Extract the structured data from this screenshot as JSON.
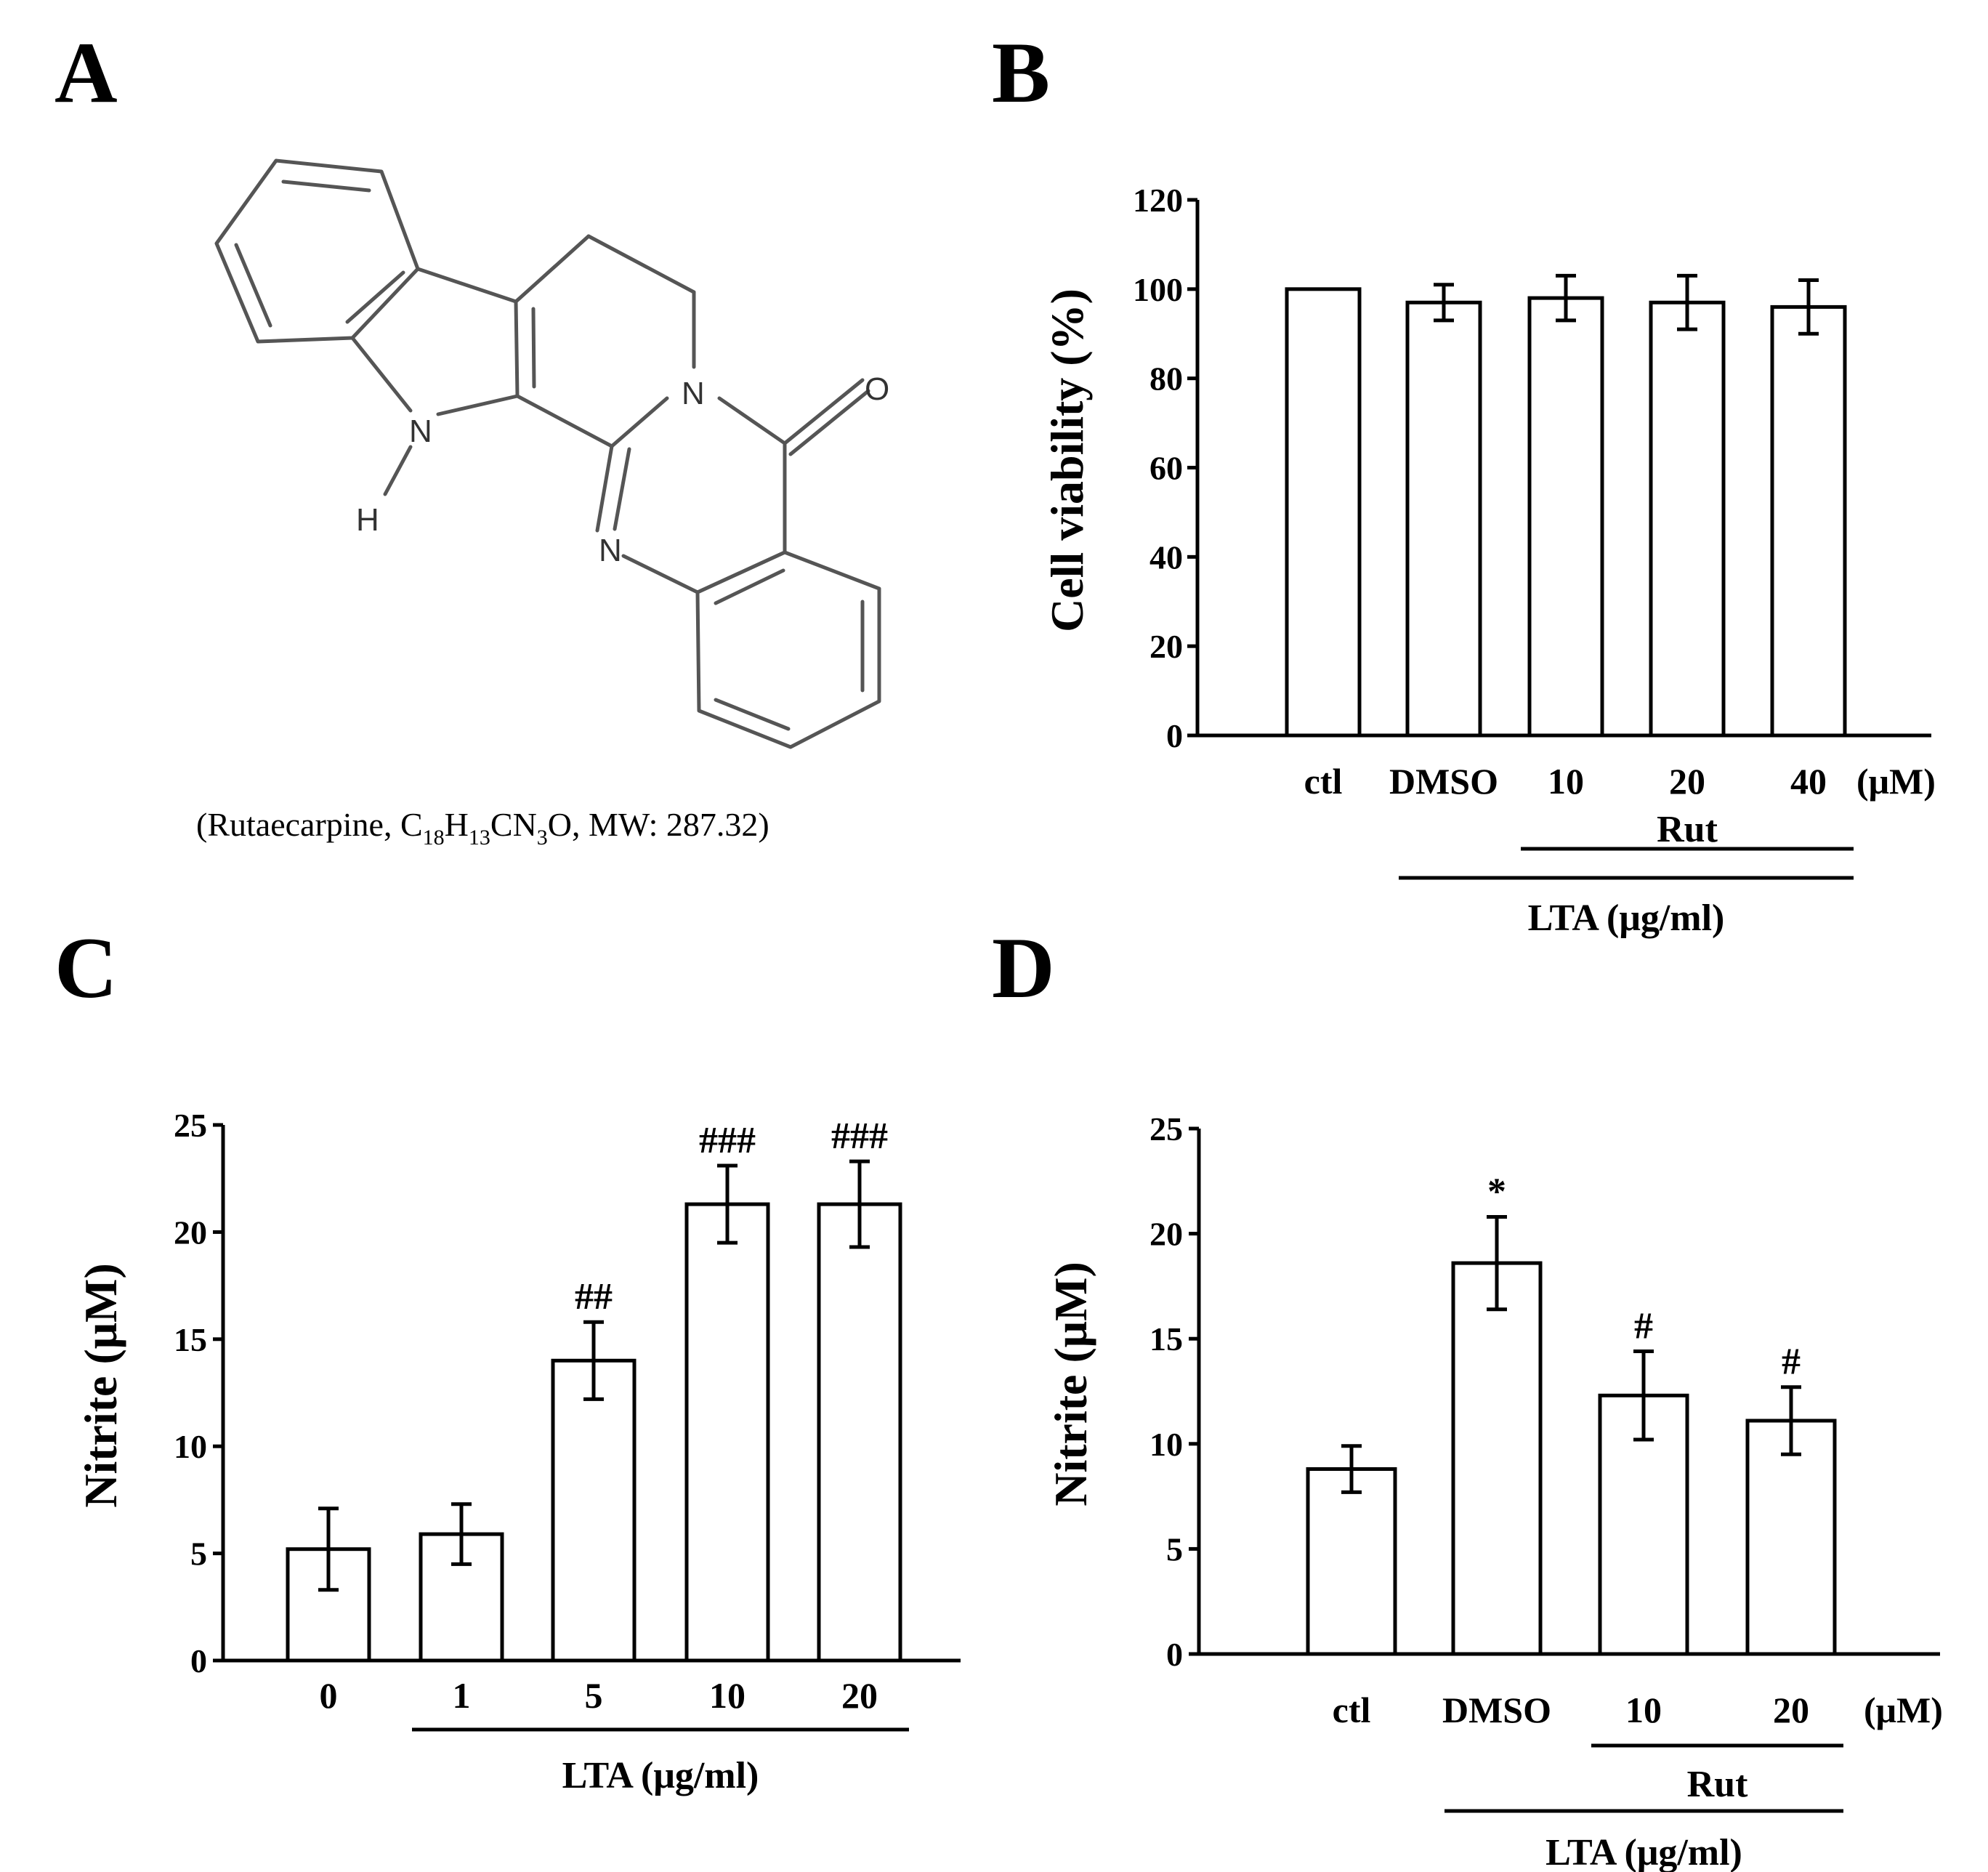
{
  "panels": {
    "a": {
      "letter": "A",
      "atoms": {
        "o": "O",
        "n_amide": "N",
        "n_imine": "N",
        "n_indole": "N",
        "h": "H"
      },
      "caption": {
        "prefix": "(Rutaecarpine, C",
        "sub1": "18",
        "h": "H",
        "sub2": "13",
        "cn": "CN",
        "sub3": "3",
        "suffix": "O, MW: 287.32)"
      }
    },
    "b": {
      "letter": "B"
    },
    "c": {
      "letter": "C"
    },
    "d": {
      "letter": "D"
    }
  },
  "colors": {
    "bar_fill": "#ffffff",
    "ink": "#000000",
    "structure": "#555555"
  },
  "chart_data": [
    {
      "panel": "B",
      "type": "bar",
      "ylabel": "Cell viability (%)",
      "ylim": [
        0,
        120
      ],
      "yticks": [
        0,
        20,
        40,
        60,
        80,
        100,
        120
      ],
      "categories": [
        "ctl",
        "DMSO",
        "10",
        "20",
        "40"
      ],
      "unit_label": "(μM)",
      "values": [
        100,
        97,
        98,
        97,
        96
      ],
      "errors": [
        0,
        4,
        5,
        6,
        6
      ],
      "significance": [
        "",
        "",
        "",
        "",
        ""
      ],
      "groups": [
        {
          "label": "Rut",
          "from": 2,
          "to": 4
        },
        {
          "label": "LTA (μg/ml)",
          "from": 1,
          "to": 4
        }
      ],
      "grid": false
    },
    {
      "panel": "C",
      "type": "bar",
      "ylabel": "Nitrite (μM)",
      "ylim": [
        0,
        25
      ],
      "yticks": [
        0,
        5,
        10,
        15,
        20,
        25
      ],
      "categories": [
        "0",
        "1",
        "5",
        "10",
        "20"
      ],
      "values": [
        5.2,
        5.9,
        14.0,
        21.3,
        21.3
      ],
      "errors": [
        1.9,
        1.4,
        1.8,
        1.8,
        2.0
      ],
      "significance": [
        "",
        "",
        "##",
        "###",
        "###"
      ],
      "groups": [
        {
          "label": "LTA (μg/ml)",
          "from": 1,
          "to": 4
        }
      ],
      "grid": false
    },
    {
      "panel": "D",
      "type": "bar",
      "ylabel": "Nitrite (μM)",
      "ylim": [
        0,
        25
      ],
      "yticks": [
        0,
        5,
        10,
        15,
        20,
        25
      ],
      "categories": [
        "ctl",
        "DMSO",
        "10",
        "20"
      ],
      "unit_label": "(μM)",
      "values": [
        8.8,
        18.6,
        12.3,
        11.1
      ],
      "errors": [
        1.1,
        2.2,
        2.1,
        1.6
      ],
      "significance": [
        "",
        "*",
        "#",
        "#"
      ],
      "groups": [
        {
          "label": "Rut",
          "from": 2,
          "to": 3
        },
        {
          "label": "LTA (μg/ml)",
          "from": 1,
          "to": 3
        }
      ],
      "grid": false
    }
  ]
}
